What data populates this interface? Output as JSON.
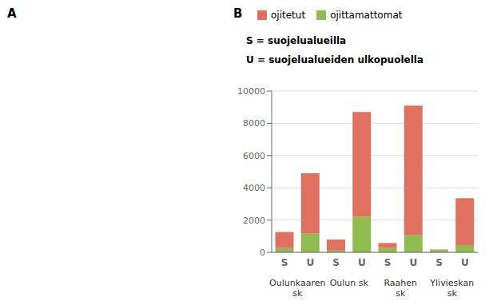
{
  "chart_data": {
    "type": "bar",
    "categories": [
      "S",
      "U",
      "S",
      "U",
      "S",
      "U",
      "S",
      "U"
    ],
    "category_groups": [
      "Oulunkaaren\nsk",
      "Oulun sk",
      "Raahen\nsk",
      "Ylivieskan\nsk"
    ],
    "series": [
      {
        "name": "ojitetut",
        "color": "#e07060",
        "values": [
          1000,
          3750,
          680,
          6500,
          310,
          8050,
          50,
          2900
        ]
      },
      {
        "name": "ojittamattomat",
        "color": "#90bb50",
        "values": [
          260,
          1150,
          110,
          2200,
          270,
          1050,
          120,
          450
        ]
      }
    ],
    "stacked": true,
    "ylim": [
      0,
      10000
    ],
    "yticks": [
      0,
      2000,
      4000,
      6000,
      8000,
      10000
    ],
    "grid": true,
    "annotations": [
      "A",
      "B",
      "S = suojelualueilla",
      "U = suojelualueiden ulkopuolella"
    ]
  }
}
